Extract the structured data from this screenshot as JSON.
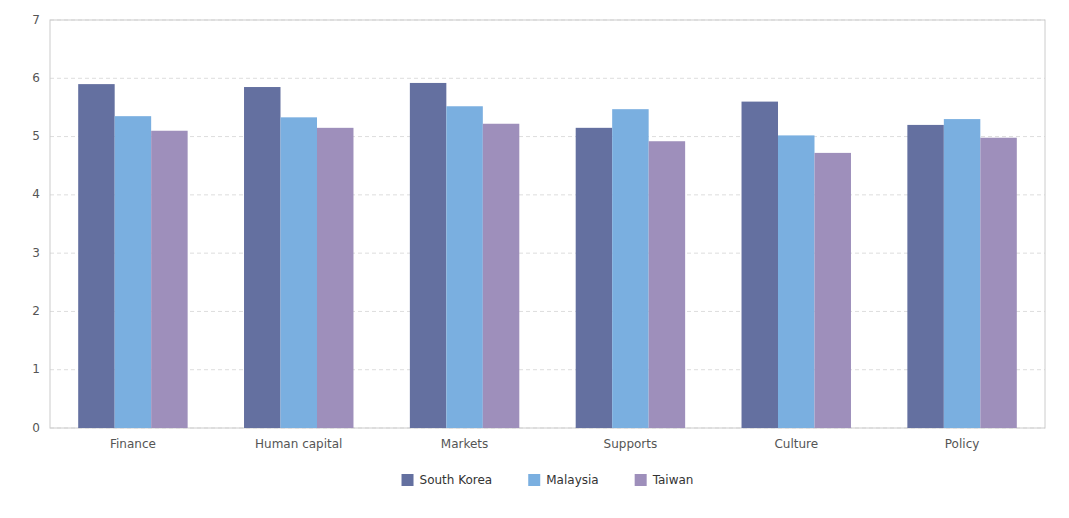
{
  "chart_data": {
    "type": "bar",
    "categories": [
      "Finance",
      "Human capital",
      "Markets",
      "Supports",
      "Culture",
      "Policy"
    ],
    "series": [
      {
        "name": "South Korea",
        "color": "#6470a0",
        "values": [
          5.9,
          5.85,
          5.92,
          5.15,
          5.6,
          5.2
        ]
      },
      {
        "name": "Malaysia",
        "color": "#7aafe0",
        "values": [
          5.35,
          5.33,
          5.52,
          5.47,
          5.02,
          5.3
        ]
      },
      {
        "name": "Taiwan",
        "color": "#9e8fbb",
        "values": [
          5.1,
          5.15,
          5.22,
          4.92,
          4.72,
          4.98
        ]
      }
    ],
    "ylim": [
      0,
      7
    ],
    "yticks": [
      0,
      1,
      2,
      3,
      4,
      5,
      6,
      7
    ],
    "grid": true,
    "legend": "bottom"
  }
}
